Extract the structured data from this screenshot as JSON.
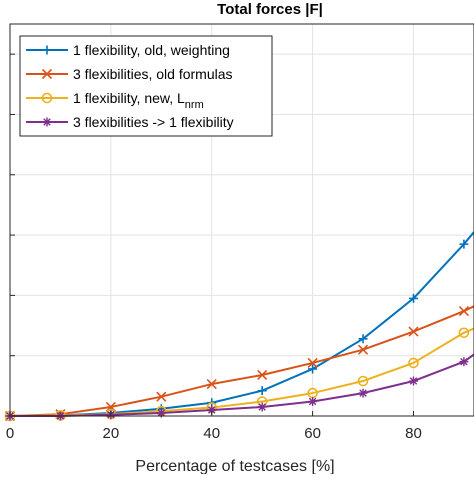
{
  "chart_data": {
    "type": "line",
    "title": "Total forces |F|",
    "xlabel": "Percentage of testcases [%]",
    "ylabel": "",
    "xlim": [
      0,
      92
    ],
    "ylim": [
      0,
      6.5
    ],
    "xticks": [
      0,
      20,
      40,
      60,
      80
    ],
    "yticks": [
      0,
      1,
      2,
      3,
      4,
      5,
      6
    ],
    "grid": true,
    "legend_position": "top-left",
    "series": [
      {
        "name": "1 flexibility, old, weighting",
        "color": "#0072bd",
        "marker": "plus",
        "x": [
          0,
          10,
          20,
          30,
          40,
          50,
          60,
          70,
          80,
          90,
          92
        ],
        "y": [
          0.0,
          0.01,
          0.05,
          0.12,
          0.22,
          0.42,
          0.78,
          1.28,
          1.95,
          2.85,
          3.05
        ]
      },
      {
        "name": "3 flexibilities, old formulas",
        "color": "#d95319",
        "marker": "x",
        "x": [
          0,
          10,
          20,
          30,
          40,
          50,
          60,
          70,
          80,
          90,
          92
        ],
        "y": [
          0.0,
          0.03,
          0.15,
          0.32,
          0.53,
          0.68,
          0.88,
          1.1,
          1.4,
          1.74,
          1.82
        ]
      },
      {
        "name": "1 flexibility, new, L",
        "name_subscript": "nrm",
        "color": "#edb120",
        "marker": "circle",
        "x": [
          0,
          10,
          20,
          30,
          40,
          50,
          60,
          70,
          80,
          90,
          92
        ],
        "y": [
          0.0,
          0.01,
          0.03,
          0.08,
          0.14,
          0.24,
          0.38,
          0.58,
          0.88,
          1.38,
          1.45
        ]
      },
      {
        "name": "3 flexibilities -> 1 flexibility",
        "color": "#7e2f8e",
        "marker": "asterisk",
        "x": [
          0,
          10,
          20,
          30,
          40,
          50,
          60,
          70,
          80,
          90,
          92
        ],
        "y": [
          0.0,
          0.0,
          0.02,
          0.05,
          0.1,
          0.15,
          0.24,
          0.38,
          0.58,
          0.9,
          1.02
        ]
      }
    ]
  }
}
